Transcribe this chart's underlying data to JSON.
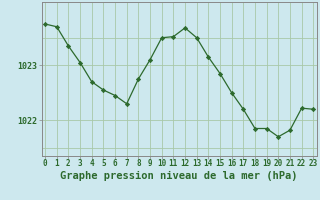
{
  "x": [
    0,
    1,
    2,
    3,
    4,
    5,
    6,
    7,
    8,
    9,
    10,
    11,
    12,
    13,
    14,
    15,
    16,
    17,
    18,
    19,
    20,
    21,
    22,
    23
  ],
  "y": [
    1023.75,
    1023.7,
    1023.35,
    1023.05,
    1022.7,
    1022.55,
    1022.45,
    1022.3,
    1022.75,
    1023.1,
    1023.5,
    1023.52,
    1023.68,
    1023.5,
    1023.15,
    1022.85,
    1022.5,
    1022.2,
    1021.85,
    1021.85,
    1021.7,
    1021.82,
    1022.22,
    1022.2
  ],
  "line_color": "#2d6a2d",
  "marker_color": "#2d6a2d",
  "bg_color": "#cde8ee",
  "grid_color": "#a8c8a8",
  "xlabel": "Graphe pression niveau de la mer (hPa)",
  "xlabel_color": "#2d6a2d",
  "tick_color": "#2d6a2d",
  "axis_color": "#888888",
  "ylim_min": 1021.35,
  "ylim_max": 1024.15,
  "ytick_labels": [
    "1022",
    "1023"
  ],
  "ytick_vals": [
    1022.0,
    1023.0
  ],
  "xtick_labels": [
    "0",
    "1",
    "2",
    "3",
    "4",
    "5",
    "6",
    "7",
    "8",
    "9",
    "10",
    "11",
    "12",
    "13",
    "14",
    "15",
    "16",
    "17",
    "18",
    "19",
    "20",
    "21",
    "22",
    "23"
  ],
  "tick_fontsize": 5.5,
  "xlabel_fontsize": 7.5
}
